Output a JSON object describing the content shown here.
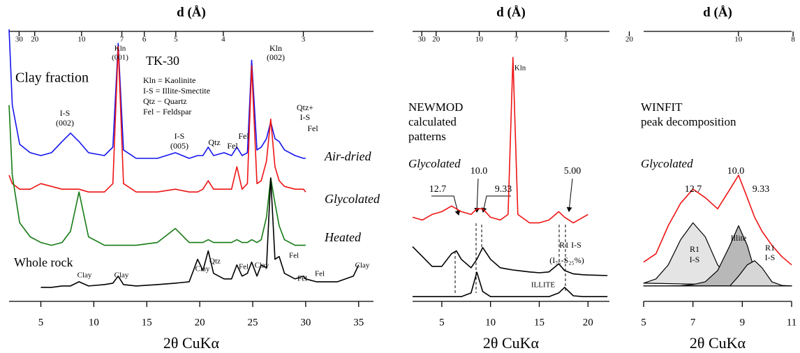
{
  "chart_data": [
    {
      "type": "line",
      "x2label": "d (Å)",
      "xlabel": "2θ CuKα",
      "xlim": [
        2,
        36.4
      ],
      "xticks": [
        5,
        10,
        15,
        20,
        25,
        30,
        35
      ],
      "x2ticks": [
        30,
        20,
        10,
        7,
        6,
        5,
        4,
        3
      ],
      "ylim": [
        0,
        100
      ],
      "x": [
        2,
        2.3,
        3,
        4,
        5,
        6,
        7,
        7.8,
        8.6,
        9.5,
        11,
        11.8,
        12.3,
        12.8,
        14,
        16,
        17.7,
        19,
        19.8,
        20.3,
        20.8,
        21.3,
        22.3,
        23,
        23.5,
        24,
        24.5,
        24.9,
        25.4,
        25.8,
        26.3,
        26.7,
        27.1,
        27.5,
        28,
        29,
        29.8,
        30,
        31,
        33,
        34.5,
        35
      ],
      "series": [
        {
          "name": "Air-dried",
          "color": "#1414ee",
          "values": [
            97,
            70,
            56,
            53,
            52,
            53,
            57,
            60,
            57,
            53,
            52,
            55,
            92,
            54,
            51,
            51,
            53,
            51,
            52,
            52,
            55,
            52,
            53,
            52,
            55,
            52,
            53,
            86,
            54,
            55,
            58,
            64,
            58,
            57,
            54,
            52,
            51,
            51,
            null,
            null,
            null,
            null
          ]
        },
        {
          "name": "Glycolated",
          "color": "#ee1414",
          "values": [
            45,
            42,
            40,
            40,
            42,
            41,
            40,
            40,
            40,
            39,
            39,
            42,
            91,
            42,
            39,
            39,
            40,
            39,
            39,
            40,
            43,
            40,
            40,
            40,
            48,
            40,
            42,
            84,
            42,
            43,
            50,
            65,
            48,
            43,
            41,
            40,
            40,
            39,
            null,
            null,
            null,
            null
          ]
        },
        {
          "name": "Heated",
          "color": "#157a15",
          "values": [
            70,
            45,
            28,
            23,
            21,
            20,
            21,
            25,
            39,
            23,
            20,
            20,
            20,
            20,
            20,
            21,
            26,
            21,
            21,
            21,
            22,
            21,
            21,
            21,
            22,
            21,
            21,
            22,
            21,
            22,
            30,
            44,
            35,
            27,
            22,
            20,
            20,
            20,
            null,
            null,
            null,
            null
          ]
        },
        {
          "name": "Whole rock",
          "color": "#000000",
          "values": [
            null,
            null,
            null,
            null,
            5,
            5,
            5.5,
            5.5,
            7,
            5.5,
            6,
            6.5,
            9,
            6,
            5.5,
            6,
            6.5,
            7,
            15,
            11,
            18,
            10,
            8,
            8,
            13,
            9,
            10,
            14,
            9,
            13,
            12,
            44,
            15,
            16,
            10,
            8,
            9,
            8,
            7,
            7,
            9,
            13
          ]
        }
      ],
      "annotations": [
        "TK-30",
        "Clay fraction",
        "Kln = Kaolinite",
        "I-S = Illite-Smectite",
        "Qtz − Quartz",
        "Fel − Feldspar",
        "I-S",
        "(002)",
        "Kln",
        "(001)",
        "I-S",
        "(005)",
        "Qtz",
        "Fel",
        "Fel",
        "Kln",
        "(002)",
        "Qtz+",
        "I-S",
        "Fel",
        "Clay",
        "Clay",
        "Clay",
        "Qtz",
        "Fel",
        "Clay",
        "Fel",
        "Fel",
        "Fel",
        "Clay"
      ]
    },
    {
      "type": "line",
      "x2label": "d (Å)",
      "xlabel": "2θ CuKα",
      "xlim": [
        2,
        22.2
      ],
      "xticks": [
        5,
        10,
        15,
        20
      ],
      "x2ticks": [
        30,
        20,
        10,
        7,
        5
      ],
      "ylim": [
        0,
        100
      ],
      "x": [
        2,
        3,
        4,
        5,
        6,
        6.5,
        7,
        8,
        8.6,
        9.2,
        10,
        11,
        11.8,
        12.3,
        12.8,
        14,
        15,
        16,
        17,
        17.6,
        18.5,
        19.5,
        20,
        21,
        22
      ],
      "series": [
        {
          "color": "#ee1414",
          "values": [
            30,
            29,
            31,
            32,
            34,
            33,
            32,
            31,
            33,
            33,
            30,
            29,
            31,
            87,
            31,
            28,
            28,
            29,
            32,
            30,
            28,
            30,
            31,
            null,
            null
          ]
        },
        {
          "name": "R1 I-S",
          "color": "#000000",
          "values": [
            19.5,
            16,
            12.5,
            12.5,
            17,
            18,
            15,
            12,
            15,
            19.2,
            15,
            12,
            11.5,
            11.2,
            11,
            10.5,
            10.2,
            10.5,
            13.4,
            11,
            9.8,
            9.5,
            9.4,
            9.3,
            9.2
          ]
        },
        {
          "name": "ILLITE",
          "color": "#000000",
          "values": [
            1.7,
            1.7,
            1.7,
            1.7,
            1.7,
            1.7,
            1.7,
            3,
            10.4,
            3.5,
            1.7,
            1.7,
            1.7,
            1.7,
            1.7,
            1.7,
            1.7,
            1.7,
            3,
            5,
            2,
            1.7,
            1.7,
            1.7,
            1.7
          ]
        }
      ],
      "annotations": [
        "NEWMOD",
        "calculated",
        "patterns",
        "Glycolated",
        "Kln",
        "12.7",
        "10.0",
        "9.33",
        "5.00",
        "(I₇₅-S₂₅%)"
      ]
    },
    {
      "type": "line",
      "x2label": "d (Å)",
      "xlabel": "2θ CuKα",
      "xlim": [
        5,
        11
      ],
      "xticks": [
        5,
        7,
        9,
        11
      ],
      "x2ticks": [
        20,
        10,
        8
      ],
      "ylim": [
        0,
        100
      ],
      "x": [
        5,
        5.5,
        6,
        6.5,
        7,
        7.5,
        8,
        8.5,
        8.85,
        9.2,
        9.5,
        9.8,
        10.2,
        10.6,
        11
      ],
      "series": [
        {
          "color": "#000000",
          "fill": "#e4e4e4",
          "values": [
            6.5,
            8,
            13,
            22,
            28,
            23,
            13,
            8,
            6.5,
            6,
            5.6,
            5.5,
            5.5,
            5.5,
            5.5
          ]
        },
        {
          "color": "#000000",
          "fill": "#b8b8b8",
          "values": [
            5.5,
            5.5,
            5.5,
            5.6,
            6,
            7,
            11,
            20,
            27,
            20,
            11,
            7,
            5.8,
            5.5,
            5.5
          ]
        },
        {
          "color": "#000000",
          "fill": "#d6d6d6",
          "values": [
            5.5,
            5.5,
            5.5,
            5.5,
            5.5,
            5.5,
            5.5,
            5.5,
            9,
            13,
            14.5,
            12,
            7,
            5.7,
            5.5
          ]
        },
        {
          "color": "#ee1414",
          "values": [
            14,
            17,
            27,
            35,
            40,
            37,
            33,
            40,
            45,
            37,
            30,
            25,
            20,
            16,
            13
          ]
        }
      ],
      "annotations": [
        "WINFIT",
        "peak decomposition",
        "Glycolated",
        "12.7",
        "10.0",
        "9.33",
        "Illite",
        "R1",
        "I-S",
        "R1",
        "I-S"
      ]
    }
  ]
}
